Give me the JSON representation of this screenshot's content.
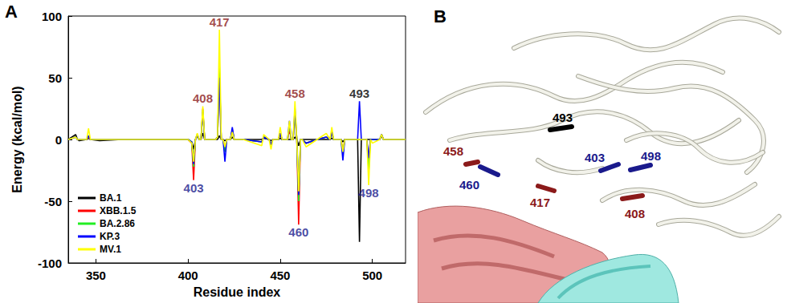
{
  "chart_data": {
    "type": "line",
    "x_label": "Residue index",
    "y_label": "Energy (kcal/mol)",
    "x": [
      335,
      339,
      340,
      341,
      345,
      346,
      347,
      352,
      364,
      378,
      400,
      402,
      403,
      404,
      405,
      406,
      407,
      408,
      409,
      410,
      415,
      416,
      417,
      418,
      419,
      420,
      421,
      423,
      424,
      425,
      430,
      440,
      441,
      444,
      445,
      446,
      449,
      450,
      451,
      454,
      455,
      456,
      457,
      458,
      459,
      460,
      461,
      462,
      464,
      470,
      475,
      477,
      478,
      479,
      483,
      484,
      485,
      490,
      492,
      493,
      494,
      496,
      497,
      498,
      499,
      500,
      504,
      505,
      506,
      518
    ],
    "series": [
      {
        "name": "BA.1",
        "color": "#000000",
        "values": [
          0,
          4,
          0,
          -1,
          0,
          1,
          0,
          -1,
          0,
          0,
          0,
          -2,
          -8,
          0,
          3,
          0,
          0,
          5,
          0,
          0,
          0,
          0,
          3,
          0,
          0,
          -1,
          0,
          0,
          2,
          0,
          0,
          0,
          1,
          0,
          -1,
          0,
          0,
          1,
          0,
          0,
          0,
          0,
          0,
          2,
          0,
          -5,
          0,
          0,
          0,
          0,
          0,
          0,
          1,
          0,
          0,
          -2,
          0,
          0,
          0,
          -83,
          0,
          0,
          0,
          0,
          0,
          0,
          0,
          3,
          0,
          0
        ]
      },
      {
        "name": "XBB.1.5",
        "color": "#ff0000",
        "values": [
          0,
          2,
          0,
          0,
          0,
          2,
          0,
          0,
          0,
          0,
          0,
          -3,
          -33,
          0,
          4,
          0,
          0,
          25,
          0,
          0,
          0,
          2,
          55,
          0,
          0,
          -8,
          0,
          0,
          8,
          0,
          0,
          -2,
          2,
          0,
          -4,
          0,
          0,
          4,
          0,
          0,
          8,
          0,
          0,
          20,
          0,
          -69,
          0,
          0,
          -3,
          0,
          2,
          0,
          6,
          0,
          0,
          -10,
          0,
          0,
          0,
          0,
          0,
          0,
          0,
          -22,
          0,
          0,
          0,
          4,
          0,
          0
        ]
      },
      {
        "name": "BA.2.86",
        "color": "#22ee22",
        "values": [
          0,
          2,
          0,
          0,
          0,
          3,
          0,
          0,
          0,
          0,
          0,
          -2,
          -22,
          0,
          4,
          0,
          0,
          24,
          0,
          0,
          0,
          2,
          60,
          0,
          0,
          -10,
          0,
          0,
          8,
          0,
          0,
          -2,
          2,
          0,
          -4,
          0,
          0,
          5,
          0,
          0,
          12,
          0,
          0,
          22,
          0,
          -50,
          0,
          0,
          -3,
          0,
          2,
          0,
          6,
          0,
          0,
          -12,
          0,
          0,
          0,
          0,
          0,
          0,
          0,
          -25,
          0,
          0,
          0,
          4,
          0,
          0
        ]
      },
      {
        "name": "KP.3",
        "color": "#0000ff",
        "values": [
          0,
          2,
          0,
          0,
          0,
          3,
          0,
          0,
          0,
          0,
          0,
          -2,
          -20,
          0,
          4,
          0,
          0,
          22,
          0,
          0,
          0,
          2,
          50,
          0,
          0,
          -18,
          0,
          0,
          10,
          0,
          0,
          -2,
          2,
          0,
          -4,
          0,
          0,
          5,
          0,
          0,
          15,
          0,
          0,
          25,
          0,
          -45,
          0,
          0,
          -3,
          0,
          2,
          0,
          6,
          0,
          0,
          -17,
          0,
          0,
          0,
          31,
          0,
          0,
          0,
          -15,
          0,
          0,
          0,
          4,
          0,
          0
        ]
      },
      {
        "name": "MV.1",
        "color": "#ffff00",
        "values": [
          0,
          2,
          0,
          0,
          0,
          9,
          0,
          0,
          0,
          0,
          0,
          -3,
          -18,
          0,
          5,
          0,
          0,
          27,
          0,
          0,
          0,
          2,
          89,
          0,
          0,
          -6,
          0,
          0,
          6,
          0,
          0,
          -5,
          4,
          0,
          -8,
          0,
          0,
          10,
          0,
          0,
          15,
          0,
          0,
          31,
          0,
          -42,
          0,
          0,
          -6,
          0,
          5,
          0,
          10,
          0,
          0,
          -10,
          0,
          0,
          0,
          0,
          0,
          0,
          0,
          -37,
          0,
          -3,
          0,
          4,
          0,
          0
        ]
      }
    ],
    "annotations": [
      {
        "text": "417",
        "x": 417,
        "y": 89,
        "color": "#8b1a1a"
      },
      {
        "text": "408",
        "x": 408,
        "y": 27,
        "color": "#8b1a1a"
      },
      {
        "text": "458",
        "x": 458,
        "y": 31,
        "color": "#8b1a1a"
      },
      {
        "text": "493",
        "x": 493,
        "y": 31,
        "color": "#000000"
      },
      {
        "text": "403",
        "x": 403,
        "y": -33,
        "color": "#1a1a8c"
      },
      {
        "text": "460",
        "x": 460,
        "y": -69,
        "color": "#1a1a8c"
      },
      {
        "text": "498",
        "x": 498,
        "y": -37,
        "color": "#1a1a8c"
      }
    ],
    "xlim": [
      335,
      518
    ],
    "xticks": [
      350,
      400,
      450,
      500
    ],
    "ylim": [
      -100,
      100
    ],
    "yticks": [
      -100,
      -50,
      0,
      50,
      100
    ],
    "grid": false,
    "legend": "lower left"
  },
  "panel_letters": [
    "A",
    "B"
  ],
  "structure": {
    "residues": [
      {
        "text": "493",
        "color": "#000000"
      },
      {
        "text": "458",
        "color": "#8b1a1a"
      },
      {
        "text": "460",
        "color": "#1a1a8c"
      },
      {
        "text": "417",
        "color": "#8b1a1a"
      },
      {
        "text": "403",
        "color": "#1a1a8c"
      },
      {
        "text": "498",
        "color": "#1a1a8c"
      },
      {
        "text": "408",
        "color": "#8b1a1a"
      }
    ]
  }
}
